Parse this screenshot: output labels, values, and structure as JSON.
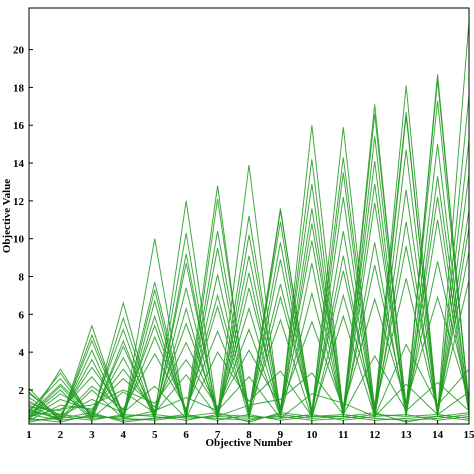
{
  "chart_data": {
    "type": "line",
    "chart_kind": "parallel-coordinates",
    "xlabel": "Objective Number",
    "ylabel": "Objective Value",
    "x_ticks": [
      1,
      2,
      3,
      4,
      5,
      6,
      7,
      8,
      9,
      10,
      11,
      12,
      13,
      14,
      15
    ],
    "y_ticks": [
      2,
      4,
      6,
      8,
      10,
      12,
      14,
      16,
      18,
      20
    ],
    "xlim": [
      1,
      15
    ],
    "ylim": [
      0.2,
      22.2
    ],
    "grid": false,
    "legend": "none",
    "line_color": "#1f9a1f",
    "series": [
      {
        "values": [
          0.6,
          2.0,
          0.4,
          4.6,
          0.4,
          9.2,
          0.6,
          11.2,
          0.8,
          14.2,
          0.7,
          16.6,
          1.0,
          18.4,
          1.2
        ]
      },
      {
        "values": [
          2.1,
          0.3,
          5.4,
          0.5,
          10.0,
          0.4,
          12.1,
          0.8,
          11.6,
          0.7,
          15.9,
          0.9,
          18.1,
          0.8,
          21.5
        ]
      },
      {
        "values": [
          0.4,
          3.1,
          0.5,
          6.6,
          0.6,
          12.0,
          0.7,
          13.9,
          0.6,
          16.0,
          0.8,
          17.1,
          0.7,
          18.7,
          1.0
        ]
      },
      {
        "values": [
          1.2,
          0.4,
          4.9,
          0.7,
          7.7,
          0.8,
          12.8,
          0.5,
          11.5,
          0.9,
          14.3,
          1.1,
          16.7,
          0.6,
          17.6
        ]
      },
      {
        "values": [
          0.9,
          2.6,
          0.6,
          5.8,
          0.8,
          10.3,
          0.4,
          10.2,
          1.0,
          12.9,
          0.5,
          15.4,
          1.2,
          17.3,
          1.3
        ]
      },
      {
        "values": [
          1.6,
          0.5,
          4.1,
          0.4,
          6.7,
          0.6,
          10.4,
          0.9,
          10.9,
          0.5,
          13.5,
          0.7,
          16.5,
          0.9,
          15.2
        ]
      },
      {
        "values": [
          0.5,
          1.8,
          0.8,
          5.2,
          0.5,
          8.7,
          0.7,
          9.1,
          0.8,
          11.6,
          0.9,
          12.9,
          0.8,
          15.0,
          0.9
        ]
      },
      {
        "values": [
          1.4,
          0.6,
          3.6,
          0.5,
          7.3,
          0.5,
          9.5,
          0.6,
          9.8,
          0.7,
          12.2,
          0.6,
          14.7,
          0.7,
          13.4
        ]
      },
      {
        "values": [
          0.8,
          2.9,
          0.5,
          4.3,
          0.7,
          7.4,
          0.6,
          8.2,
          0.5,
          10.8,
          1.0,
          14.1,
          0.7,
          13.3,
          1.1
        ]
      },
      {
        "values": [
          1.9,
          0.4,
          4.6,
          0.6,
          5.9,
          0.7,
          8.1,
          0.7,
          8.9,
          0.6,
          10.4,
          0.8,
          12.6,
          0.8,
          11.5
        ]
      },
      {
        "values": [
          0.7,
          2.3,
          0.7,
          3.7,
          0.6,
          6.3,
          0.5,
          7.4,
          0.9,
          9.9,
          0.7,
          11.9,
          0.9,
          12.2,
          0.8
        ]
      },
      {
        "values": [
          1.3,
          0.7,
          3.2,
          0.9,
          5.4,
          0.8,
          7.0,
          0.8,
          7.6,
          0.8,
          9.1,
          0.5,
          10.9,
          0.6,
          10.6
        ]
      },
      {
        "values": [
          0.5,
          1.5,
          0.9,
          3.1,
          0.9,
          5.5,
          0.9,
          6.3,
          0.7,
          8.7,
          0.6,
          9.8,
          0.6,
          11.0,
          0.7
        ]
      },
      {
        "values": [
          1.1,
          0.9,
          2.7,
          0.7,
          4.8,
          0.9,
          6.4,
          0.5,
          6.9,
          0.9,
          8.3,
          0.9,
          9.6,
          1.0,
          9.3
        ]
      },
      {
        "values": [
          0.4,
          1.2,
          1.0,
          2.6,
          1.1,
          4.5,
          1.0,
          5.2,
          0.6,
          7.1,
          0.8,
          8.6,
          1.1,
          8.8,
          1.4
        ]
      },
      {
        "values": [
          0.9,
          0.5,
          2.2,
          1.0,
          3.9,
          1.0,
          5.1,
          1.0,
          5.7,
          0.5,
          7.0,
          1.0,
          7.9,
          0.9,
          7.8
        ]
      },
      {
        "values": [
          0.6,
          1.0,
          1.2,
          2.0,
          1.3,
          3.6,
          1.1,
          4.1,
          1.1,
          5.6,
          1.0,
          6.8,
          1.3,
          6.9,
          1.5
        ]
      },
      {
        "values": [
          0.7,
          0.4,
          0.6,
          0.5,
          0.4,
          0.6,
          0.5,
          0.4,
          0.7,
          0.5,
          0.6,
          0.4,
          0.5,
          0.6,
          0.4
        ]
      },
      {
        "values": [
          0.3,
          0.6,
          0.4,
          0.7,
          0.6,
          0.4,
          0.7,
          0.6,
          0.5,
          0.7,
          0.4,
          0.6,
          0.7,
          0.4,
          0.6
        ]
      },
      {
        "values": [
          0.5,
          0.3,
          0.7,
          0.4,
          0.5,
          0.7,
          0.4,
          0.7,
          0.4,
          0.6,
          0.7,
          0.5,
          0.4,
          0.5,
          0.7
        ]
      },
      {
        "values": [
          0.8,
          0.7,
          0.5,
          0.6,
          0.7,
          0.5,
          0.6,
          0.5,
          0.6,
          0.4,
          0.5,
          0.7,
          0.6,
          0.7,
          0.5
        ]
      },
      {
        "values": [
          0.4,
          0.5,
          0.8,
          0.3,
          0.5,
          0.6,
          0.8,
          0.3,
          0.8,
          0.6,
          0.6,
          0.8,
          0.3,
          0.6,
          0.8
        ]
      },
      {
        "values": [
          1.8,
          0.6,
          1.5,
          0.8,
          2.2,
          0.5,
          4.0,
          1.4,
          3.0,
          0.6,
          5.9,
          0.6,
          4.4,
          1.2,
          3.1
        ]
      },
      {
        "values": [
          0.6,
          2.2,
          0.5,
          1.9,
          0.8,
          2.8,
          0.6,
          1.2,
          1.5,
          2.9,
          0.7,
          3.8,
          0.9,
          2.4,
          0.9
        ]
      },
      {
        "values": [
          1.0,
          0.4,
          2.0,
          0.5,
          0.9,
          1.6,
          0.9,
          2.7,
          0.5,
          1.8,
          1.3,
          0.6,
          2.3,
          0.7,
          1.9
        ]
      }
    ]
  }
}
